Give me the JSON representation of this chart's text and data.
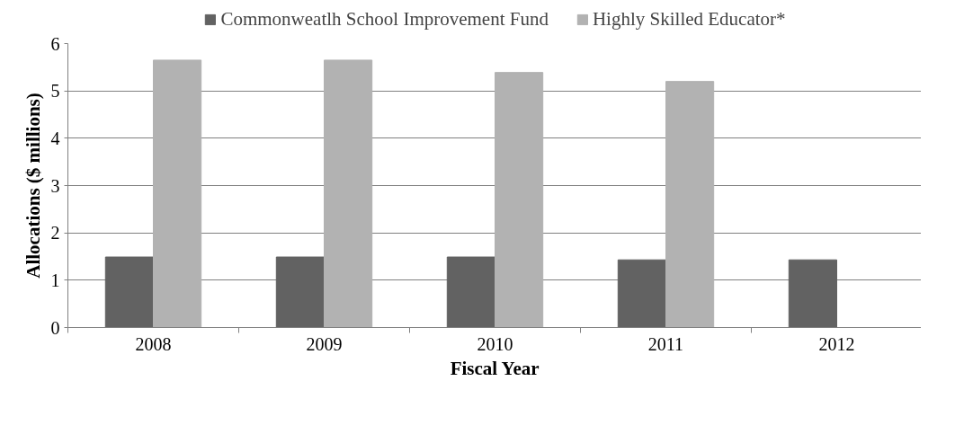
{
  "chart_data": {
    "type": "bar",
    "xlabel": "Fiscal Year",
    "ylabel": "Allocations ($ millions)",
    "categories": [
      "2008",
      "2009",
      "2010",
      "2011",
      "2012"
    ],
    "series": [
      {
        "name": "Commonweatlh School Improvement Fund",
        "color": "#626262",
        "values": [
          1.49,
          1.49,
          1.49,
          1.43,
          1.43
        ]
      },
      {
        "name": "Highly Skilled Educator*",
        "color": "#b2b2b2",
        "values": [
          5.65,
          5.65,
          5.39,
          5.2,
          null
        ]
      }
    ],
    "ylim": [
      0,
      6
    ],
    "yticks": [
      0,
      1,
      2,
      3,
      4,
      5,
      6
    ],
    "grid": "y",
    "legend": "top"
  }
}
